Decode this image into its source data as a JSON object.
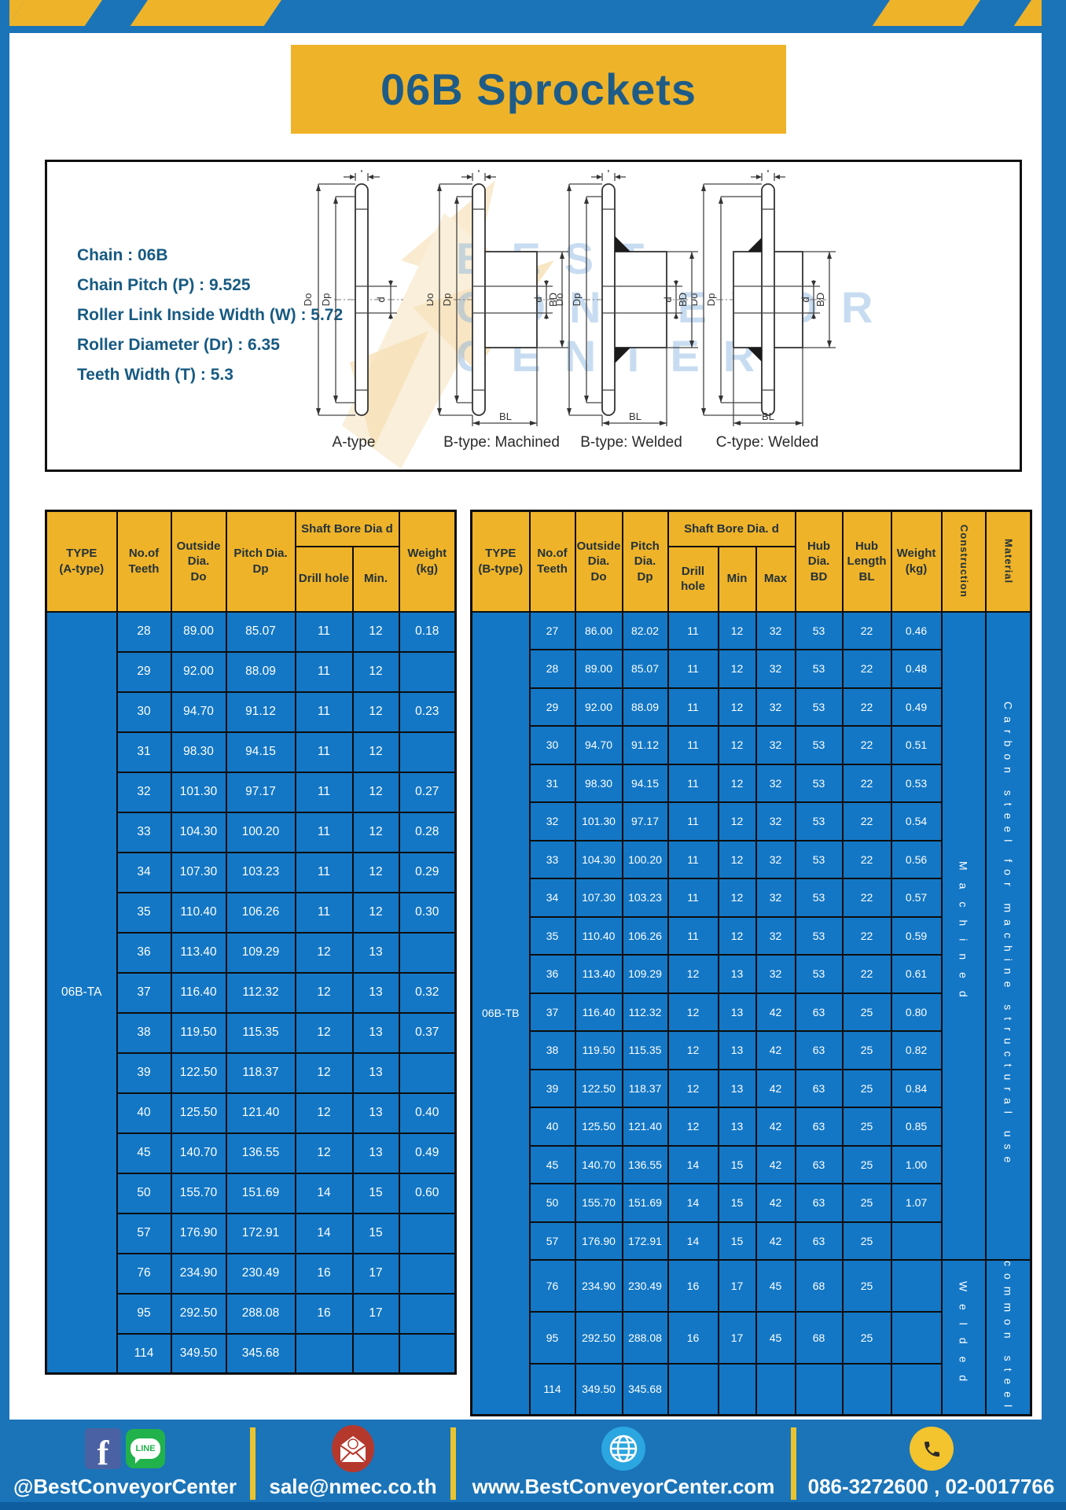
{
  "title": "06B Sprockets",
  "specs": {
    "lines": [
      "Chain  : 06B",
      "Chain Pitch (P)  :  9.525",
      "Roller Link Inside Width (W)  :  5.72",
      "Roller Diameter (Dr)  : 6.35",
      "Teeth Width (T)  :  5.3"
    ]
  },
  "watermark": [
    "BEST",
    "CONVEYOR",
    "CENTER"
  ],
  "dims": {
    "T": "T",
    "Do": "Do",
    "Dp": "Dp",
    "d": "d",
    "BD": "BD",
    "BL": "BL"
  },
  "diagrams": [
    {
      "label": "A-type"
    },
    {
      "label": "B-type: Machined"
    },
    {
      "label": "B-type: Welded"
    },
    {
      "label": "C-type: Welded"
    }
  ],
  "tables": {
    "left": {
      "type_label": "06B-TA",
      "headers": {
        "type": "TYPE\n(A-type)",
        "teeth": "No.of\nTeeth",
        "outside": "Outside\nDia.\nDo",
        "pitch": "Pitch Dia.\nDp",
        "shaft_bore": "Shaft Bore Dia d",
        "drill": "Drill hole",
        "min": "Min.",
        "weight": "Weight\n(kg)"
      },
      "rows": [
        [
          "28",
          "89.00",
          "85.07",
          "11",
          "12",
          "0.18"
        ],
        [
          "29",
          "92.00",
          "88.09",
          "11",
          "12",
          ""
        ],
        [
          "30",
          "94.70",
          "91.12",
          "11",
          "12",
          "0.23"
        ],
        [
          "31",
          "98.30",
          "94.15",
          "11",
          "12",
          ""
        ],
        [
          "32",
          "101.30",
          "97.17",
          "11",
          "12",
          "0.27"
        ],
        [
          "33",
          "104.30",
          "100.20",
          "11",
          "12",
          "0.28"
        ],
        [
          "34",
          "107.30",
          "103.23",
          "11",
          "12",
          "0.29"
        ],
        [
          "35",
          "110.40",
          "106.26",
          "11",
          "12",
          "0.30"
        ],
        [
          "36",
          "113.40",
          "109.29",
          "12",
          "13",
          ""
        ],
        [
          "37",
          "116.40",
          "112.32",
          "12",
          "13",
          "0.32"
        ],
        [
          "38",
          "119.50",
          "115.35",
          "12",
          "13",
          "0.37"
        ],
        [
          "39",
          "122.50",
          "118.37",
          "12",
          "13",
          ""
        ],
        [
          "40",
          "125.50",
          "121.40",
          "12",
          "13",
          "0.40"
        ],
        [
          "45",
          "140.70",
          "136.55",
          "12",
          "13",
          "0.49"
        ],
        [
          "50",
          "155.70",
          "151.69",
          "14",
          "15",
          "0.60"
        ],
        [
          "57",
          "176.90",
          "172.91",
          "14",
          "15",
          ""
        ],
        [
          "76",
          "234.90",
          "230.49",
          "16",
          "17",
          ""
        ],
        [
          "95",
          "292.50",
          "288.08",
          "16",
          "17",
          ""
        ],
        [
          "114",
          "349.50",
          "345.68",
          "",
          "",
          ""
        ]
      ]
    },
    "right": {
      "type_label": "06B-TB",
      "headers": {
        "type": "TYPE\n(B-type)",
        "teeth": "No.of\nTeeth",
        "outside": "Outside\nDia.\nDo",
        "pitch": "Pitch\nDia.\nDp",
        "shaft_bore": "Shaft Bore Dia. d",
        "drill": "Drill hole",
        "min": "Min",
        "max": "Max",
        "hub_dia": "Hub\nDia.\nBD",
        "hub_len": "Hub\nLength\nBL",
        "weight": "Weight\n(kg)",
        "construction": "Construction",
        "material": "Material"
      },
      "rows": [
        [
          "27",
          "86.00",
          "82.02",
          "11",
          "12",
          "32",
          "53",
          "22",
          "0.46"
        ],
        [
          "28",
          "89.00",
          "85.07",
          "11",
          "12",
          "32",
          "53",
          "22",
          "0.48"
        ],
        [
          "29",
          "92.00",
          "88.09",
          "11",
          "12",
          "32",
          "53",
          "22",
          "0.49"
        ],
        [
          "30",
          "94.70",
          "91.12",
          "11",
          "12",
          "32",
          "53",
          "22",
          "0.51"
        ],
        [
          "31",
          "98.30",
          "94.15",
          "11",
          "12",
          "32",
          "53",
          "22",
          "0.53"
        ],
        [
          "32",
          "101.30",
          "97.17",
          "11",
          "12",
          "32",
          "53",
          "22",
          "0.54"
        ],
        [
          "33",
          "104.30",
          "100.20",
          "11",
          "12",
          "32",
          "53",
          "22",
          "0.56"
        ],
        [
          "34",
          "107.30",
          "103.23",
          "11",
          "12",
          "32",
          "53",
          "22",
          "0.57"
        ],
        [
          "35",
          "110.40",
          "106.26",
          "11",
          "12",
          "32",
          "53",
          "22",
          "0.59"
        ],
        [
          "36",
          "113.40",
          "109.29",
          "12",
          "13",
          "32",
          "53",
          "22",
          "0.61"
        ],
        [
          "37",
          "116.40",
          "112.32",
          "12",
          "13",
          "42",
          "63",
          "25",
          "0.80"
        ],
        [
          "38",
          "119.50",
          "115.35",
          "12",
          "13",
          "42",
          "63",
          "25",
          "0.82"
        ],
        [
          "39",
          "122.50",
          "118.37",
          "12",
          "13",
          "42",
          "63",
          "25",
          "0.84"
        ],
        [
          "40",
          "125.50",
          "121.40",
          "12",
          "13",
          "42",
          "63",
          "25",
          "0.85"
        ],
        [
          "45",
          "140.70",
          "136.55",
          "14",
          "15",
          "42",
          "63",
          "25",
          "1.00"
        ],
        [
          "50",
          "155.70",
          "151.69",
          "14",
          "15",
          "42",
          "63",
          "25",
          "1.07"
        ],
        [
          "57",
          "176.90",
          "172.91",
          "14",
          "15",
          "42",
          "63",
          "25",
          ""
        ],
        [
          "76",
          "234.90",
          "230.49",
          "16",
          "17",
          "45",
          "68",
          "25",
          ""
        ],
        [
          "95",
          "292.50",
          "288.08",
          "16",
          "17",
          "45",
          "68",
          "25",
          ""
        ],
        [
          "114",
          "349.50",
          "345.68",
          "",
          "",
          "",
          "",
          "",
          ""
        ]
      ],
      "construction": [
        {
          "label": "Machined",
          "span": 17
        },
        {
          "label": "Welded",
          "span": 3
        }
      ],
      "material": [
        {
          "label": "Carbon steel for machine structural use",
          "span": 17
        },
        {
          "label": "common steel",
          "span": 3
        }
      ]
    }
  },
  "footer": {
    "social_handle": "@BestConveyorCenter",
    "email": "sale@nmec.co.th",
    "website": "www.BestConveyorCenter.com",
    "phone": "086-3272600 , 02-0017766",
    "facebook_letter": "f",
    "line_label": "LINE"
  },
  "colors": {
    "band_blue": "#1b74b8",
    "cell_blue": "#1377c5",
    "accent_yellow": "#efb329",
    "title_text": "#1e5c87",
    "footer_strip": "#0d5d9f"
  }
}
